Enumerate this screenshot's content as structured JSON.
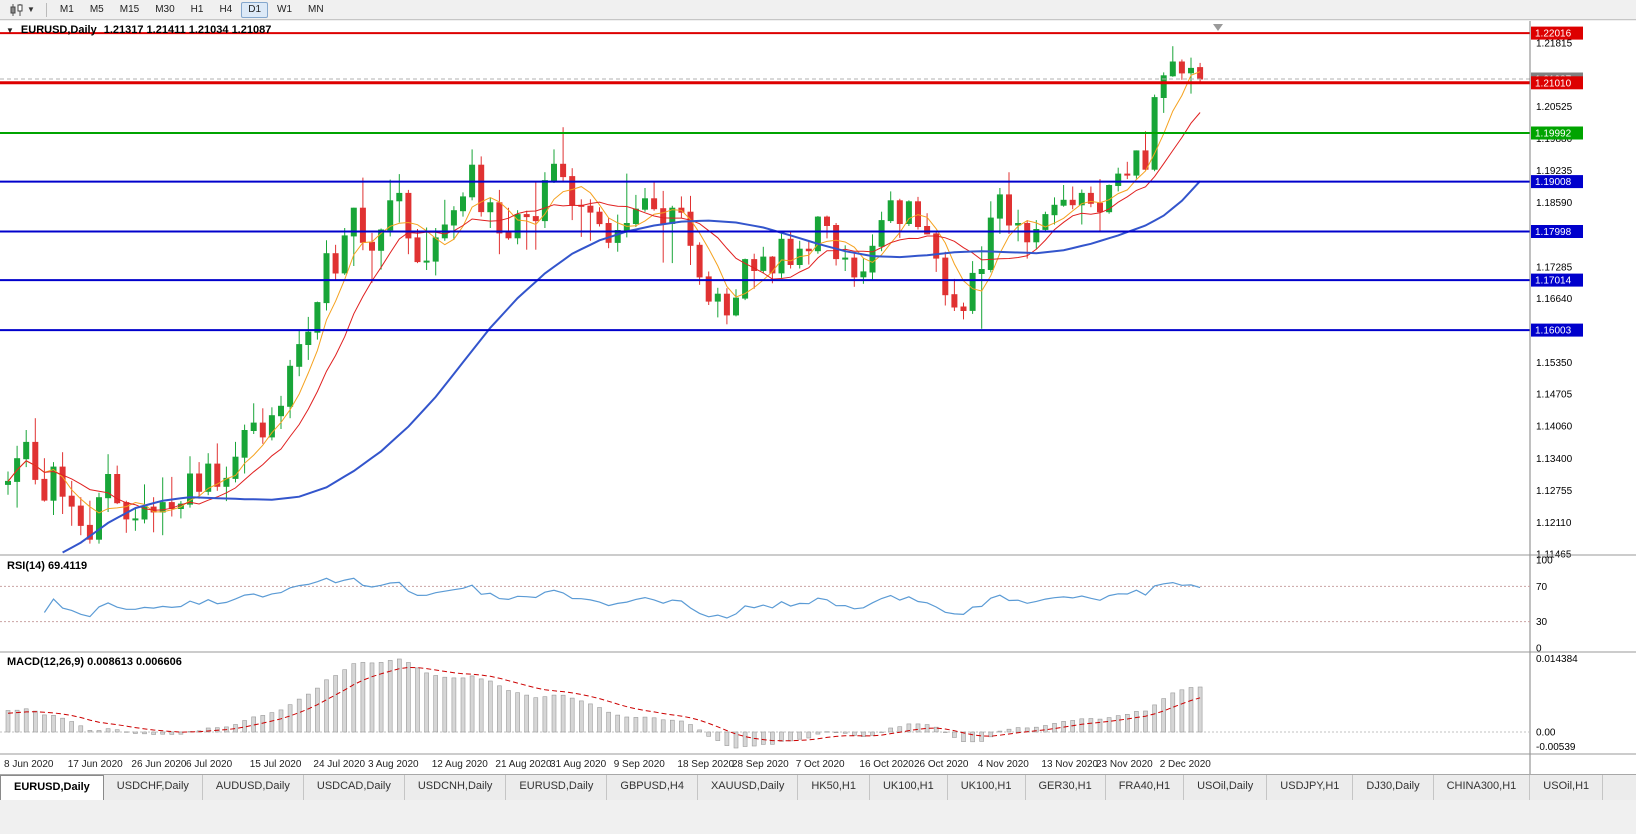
{
  "toolbar": {
    "timeframes": [
      "M1",
      "M5",
      "M15",
      "M30",
      "H1",
      "H4",
      "D1",
      "W1",
      "MN"
    ],
    "active_timeframe": "D1"
  },
  "header": {
    "symbol": "EURUSD,Daily",
    "ohlc": "1.21317 1.21411 1.21034 1.21087"
  },
  "chart_data": {
    "type": "candlestick",
    "title": "EURUSD,Daily",
    "current_quote": {
      "open": 1.21317,
      "high": 1.21411,
      "low": 1.21034,
      "close": 1.21087
    },
    "y_axis": {
      "price_top": 1.2224,
      "price_bottom": 1.1147,
      "ticks": [
        "1.21815",
        "1.20525",
        "1.19880",
        "1.19235",
        "1.18590",
        "1.17285",
        "1.16640",
        "1.15350",
        "1.14705",
        "1.14060",
        "1.13400",
        "1.12755",
        "1.12110",
        "1.11465"
      ]
    },
    "x_ticks": [
      {
        "label": "8 Jun 2020",
        "bar": 0
      },
      {
        "label": "17 Jun 2020",
        "bar": 7
      },
      {
        "label": "26 Jun 2020",
        "bar": 14
      },
      {
        "label": "6 Jul 2020",
        "bar": 20
      },
      {
        "label": "15 Jul 2020",
        "bar": 27
      },
      {
        "label": "24 Jul 2020",
        "bar": 34
      },
      {
        "label": "3 Aug 2020",
        "bar": 40
      },
      {
        "label": "12 Aug 2020",
        "bar": 47
      },
      {
        "label": "21 Aug 2020",
        "bar": 54
      },
      {
        "label": "31 Aug 2020",
        "bar": 60
      },
      {
        "label": "9 Sep 2020",
        "bar": 67
      },
      {
        "label": "18 Sep 2020",
        "bar": 74
      },
      {
        "label": "28 Sep 2020",
        "bar": 80
      },
      {
        "label": "7 Oct 2020",
        "bar": 87
      },
      {
        "label": "16 Oct 2020",
        "bar": 94
      },
      {
        "label": "26 Oct 2020",
        "bar": 100
      },
      {
        "label": "4 Nov 2020",
        "bar": 107
      },
      {
        "label": "13 Nov 2020",
        "bar": 114
      },
      {
        "label": "23 Nov 2020",
        "bar": 120
      },
      {
        "label": "2 Dec 2020",
        "bar": 127
      }
    ],
    "colors": {
      "up": "#18a538",
      "down": "#e03232",
      "background": "#ffffff"
    },
    "hlines": [
      {
        "price": 1.22016,
        "label": "1.22016",
        "color": "#dd0000",
        "width": 2
      },
      {
        "price": 1.2101,
        "label": "1.21010",
        "color": "#dd0000",
        "width": 3
      },
      {
        "price": 1.19992,
        "label": "1.19992",
        "color": "#00a400",
        "width": 2
      },
      {
        "price": 1.19008,
        "label": "1.19008",
        "color": "#0000cc",
        "width": 2
      },
      {
        "price": 1.17998,
        "label": "1.17998",
        "color": "#0000cc",
        "width": 2
      },
      {
        "price": 1.17014,
        "label": "1.17014",
        "color": "#0000cc",
        "width": 2
      },
      {
        "price": 1.16003,
        "label": "1.16003",
        "color": "#0000cc",
        "width": 2
      }
    ],
    "current_price": {
      "value": "1.21087",
      "price": 1.21087,
      "badge_color": "#808080"
    },
    "moving_averages": [
      {
        "name": "fast",
        "type": "sma",
        "period": 5,
        "color": "#f5a21f",
        "width": 1
      },
      {
        "name": "medium",
        "type": "sma",
        "period": 10,
        "color": "#e02020",
        "width": 1
      },
      {
        "name": "slow",
        "color": "#3355cc",
        "width": 2,
        "points": [
          [
            6,
            1.115
          ],
          [
            8,
            1.117
          ],
          [
            11,
            1.121
          ],
          [
            14,
            1.124
          ],
          [
            17,
            1.1255
          ],
          [
            20,
            1.1262
          ],
          [
            23,
            1.126
          ],
          [
            26,
            1.1258
          ],
          [
            29,
            1.1257
          ],
          [
            32,
            1.1263
          ],
          [
            35,
            1.1282
          ],
          [
            38,
            1.1315
          ],
          [
            41,
            1.1355
          ],
          [
            44,
            1.1405
          ],
          [
            47,
            1.1465
          ],
          [
            50,
            1.1535
          ],
          [
            53,
            1.1605
          ],
          [
            56,
            1.1665
          ],
          [
            59,
            1.1715
          ],
          [
            62,
            1.1755
          ],
          [
            65,
            1.1782
          ],
          [
            68,
            1.18
          ],
          [
            71,
            1.1812
          ],
          [
            74,
            1.182
          ],
          [
            77,
            1.1822
          ],
          [
            80,
            1.1818
          ],
          [
            83,
            1.1808
          ],
          [
            86,
            1.1792
          ],
          [
            89,
            1.1775
          ],
          [
            92,
            1.176
          ],
          [
            95,
            1.175
          ],
          [
            98,
            1.1748
          ],
          [
            101,
            1.1752
          ],
          [
            104,
            1.1758
          ],
          [
            107,
            1.176
          ],
          [
            110,
            1.1758
          ],
          [
            113,
            1.1756
          ],
          [
            116,
            1.1762
          ],
          [
            119,
            1.1775
          ],
          [
            122,
            1.1792
          ],
          [
            125,
            1.1812
          ],
          [
            127,
            1.1832
          ],
          [
            129,
            1.1862
          ],
          [
            131,
            1.1902
          ]
        ]
      }
    ],
    "indicators": {
      "rsi": {
        "label": "RSI(14) 69.4119",
        "period": 14,
        "value": 69.4119,
        "levels": [
          100,
          70,
          30,
          0
        ],
        "line_color": "#5b9bd5"
      },
      "macd": {
        "label": "MACD(12,26,9) 0.008613 0.006606",
        "fast": 12,
        "slow": 26,
        "signal": 9,
        "macd_value": 0.008613,
        "signal_value": 0.006606,
        "axis_labels": [
          "0.014384",
          "0.00",
          "-0.00539"
        ],
        "histogram_color": "#d6d6d6",
        "signal_color": "#cc0000"
      }
    },
    "candles": [
      [
        1.1288,
        1.1314,
        1.1267,
        1.1294
      ],
      [
        1.1294,
        1.1366,
        1.1241,
        1.134
      ],
      [
        1.134,
        1.1398,
        1.1323,
        1.1373
      ],
      [
        1.1373,
        1.1422,
        1.1288,
        1.1298
      ],
      [
        1.1298,
        1.1341,
        1.1253,
        1.1256
      ],
      [
        1.1256,
        1.1333,
        1.1226,
        1.1323
      ],
      [
        1.1323,
        1.1353,
        1.1228,
        1.1264
      ],
      [
        1.1264,
        1.1295,
        1.1204,
        1.1244
      ],
      [
        1.1244,
        1.1262,
        1.1185,
        1.1205
      ],
      [
        1.1205,
        1.1255,
        1.1168,
        1.1177
      ],
      [
        1.1177,
        1.1271,
        1.1168,
        1.1261
      ],
      [
        1.1261,
        1.1349,
        1.1232,
        1.1308
      ],
      [
        1.1308,
        1.1326,
        1.1248,
        1.1251
      ],
      [
        1.1251,
        1.1255,
        1.119,
        1.1218
      ],
      [
        1.1218,
        1.1239,
        1.1194,
        1.1218
      ],
      [
        1.1218,
        1.1288,
        1.1209,
        1.1242
      ],
      [
        1.1242,
        1.1262,
        1.1191,
        1.1232
      ],
      [
        1.1232,
        1.1302,
        1.1185,
        1.1251
      ],
      [
        1.1251,
        1.1303,
        1.1223,
        1.1239
      ],
      [
        1.1239,
        1.1254,
        1.1219,
        1.1248
      ],
      [
        1.1248,
        1.1345,
        1.1241,
        1.1309
      ],
      [
        1.1309,
        1.1333,
        1.1259,
        1.1274
      ],
      [
        1.1274,
        1.1351,
        1.1266,
        1.1329
      ],
      [
        1.1329,
        1.1371,
        1.1275,
        1.1284
      ],
      [
        1.1284,
        1.1324,
        1.1254,
        1.13
      ],
      [
        1.13,
        1.1374,
        1.1292,
        1.1343
      ],
      [
        1.1343,
        1.1409,
        1.131,
        1.1397
      ],
      [
        1.1397,
        1.1452,
        1.139,
        1.1412
      ],
      [
        1.1412,
        1.1442,
        1.137,
        1.1384
      ],
      [
        1.1384,
        1.1444,
        1.1377,
        1.1427
      ],
      [
        1.1427,
        1.1467,
        1.14,
        1.1446
      ],
      [
        1.1446,
        1.154,
        1.1422,
        1.1527
      ],
      [
        1.1527,
        1.1601,
        1.1507,
        1.1571
      ],
      [
        1.1571,
        1.1627,
        1.154,
        1.1596
      ],
      [
        1.1596,
        1.1658,
        1.1581,
        1.1656
      ],
      [
        1.1656,
        1.1782,
        1.164,
        1.1755
      ],
      [
        1.1755,
        1.1773,
        1.17,
        1.1716
      ],
      [
        1.1716,
        1.1807,
        1.1712,
        1.1791
      ],
      [
        1.1791,
        1.1848,
        1.173,
        1.1847
      ],
      [
        1.1847,
        1.1909,
        1.1762,
        1.1778
      ],
      [
        1.1778,
        1.1797,
        1.1696,
        1.1762
      ],
      [
        1.1762,
        1.1806,
        1.1723,
        1.1803
      ],
      [
        1.1803,
        1.1905,
        1.179,
        1.1862
      ],
      [
        1.1862,
        1.1916,
        1.1818,
        1.1877
      ],
      [
        1.1877,
        1.1884,
        1.1754,
        1.1787
      ],
      [
        1.1787,
        1.1805,
        1.1736,
        1.1739
      ],
      [
        1.1739,
        1.1808,
        1.1722,
        1.174
      ],
      [
        1.174,
        1.1807,
        1.1711,
        1.1787
      ],
      [
        1.1787,
        1.1864,
        1.1781,
        1.1813
      ],
      [
        1.1813,
        1.1851,
        1.1783,
        1.1842
      ],
      [
        1.1842,
        1.1879,
        1.183,
        1.187
      ],
      [
        1.187,
        1.1966,
        1.1863,
        1.1934
      ],
      [
        1.1934,
        1.1952,
        1.183,
        1.184
      ],
      [
        1.184,
        1.1868,
        1.1807,
        1.1858
      ],
      [
        1.1858,
        1.1884,
        1.1754,
        1.1797
      ],
      [
        1.1797,
        1.1848,
        1.1783,
        1.1787
      ],
      [
        1.1787,
        1.1843,
        1.1774,
        1.1834
      ],
      [
        1.1834,
        1.1842,
        1.1763,
        1.183
      ],
      [
        1.183,
        1.19,
        1.1763,
        1.1822
      ],
      [
        1.1822,
        1.192,
        1.1807,
        1.1903
      ],
      [
        1.1903,
        1.1966,
        1.1898,
        1.1936
      ],
      [
        1.1936,
        1.2011,
        1.1902,
        1.1911
      ],
      [
        1.1911,
        1.1928,
        1.1823,
        1.1853
      ],
      [
        1.1853,
        1.1865,
        1.1789,
        1.1851
      ],
      [
        1.1851,
        1.1865,
        1.1781,
        1.1839
      ],
      [
        1.1839,
        1.1849,
        1.181,
        1.1816
      ],
      [
        1.1816,
        1.1827,
        1.1766,
        1.1778
      ],
      [
        1.1778,
        1.1834,
        1.1759,
        1.1802
      ],
      [
        1.1802,
        1.1917,
        1.1788,
        1.1816
      ],
      [
        1.1816,
        1.1874,
        1.1809,
        1.1845
      ],
      [
        1.1845,
        1.1888,
        1.184,
        1.1866
      ],
      [
        1.1866,
        1.19,
        1.1842,
        1.1846
      ],
      [
        1.1846,
        1.1882,
        1.1737,
        1.1816
      ],
      [
        1.1816,
        1.1852,
        1.1736,
        1.1847
      ],
      [
        1.1847,
        1.1871,
        1.1827,
        1.1839
      ],
      [
        1.1839,
        1.1872,
        1.1732,
        1.1772
      ],
      [
        1.1772,
        1.1778,
        1.1692,
        1.1708
      ],
      [
        1.1708,
        1.1719,
        1.1651,
        1.1659
      ],
      [
        1.1659,
        1.1686,
        1.1626,
        1.1673
      ],
      [
        1.1673,
        1.1685,
        1.1612,
        1.1631
      ],
      [
        1.1631,
        1.1683,
        1.1628,
        1.1665
      ],
      [
        1.1665,
        1.1745,
        1.1661,
        1.1743
      ],
      [
        1.1743,
        1.1755,
        1.1684,
        1.1721
      ],
      [
        1.1721,
        1.1769,
        1.1715,
        1.1748
      ],
      [
        1.1748,
        1.175,
        1.1695,
        1.1716
      ],
      [
        1.1716,
        1.1797,
        1.1706,
        1.1784
      ],
      [
        1.1784,
        1.1798,
        1.1725,
        1.1733
      ],
      [
        1.1733,
        1.1781,
        1.1725,
        1.1764
      ],
      [
        1.1764,
        1.1782,
        1.1733,
        1.1761
      ],
      [
        1.1761,
        1.1831,
        1.1755,
        1.1829
      ],
      [
        1.1829,
        1.1832,
        1.1786,
        1.1812
      ],
      [
        1.1812,
        1.1817,
        1.1731,
        1.1745
      ],
      [
        1.1745,
        1.1772,
        1.172,
        1.1746
      ],
      [
        1.1746,
        1.1758,
        1.1688,
        1.1708
      ],
      [
        1.1708,
        1.1746,
        1.1694,
        1.1718
      ],
      [
        1.1718,
        1.1794,
        1.1703,
        1.177
      ],
      [
        1.177,
        1.184,
        1.176,
        1.1822
      ],
      [
        1.1822,
        1.1881,
        1.1817,
        1.1862
      ],
      [
        1.1862,
        1.1866,
        1.1787,
        1.1816
      ],
      [
        1.1816,
        1.1863,
        1.1811,
        1.186
      ],
      [
        1.186,
        1.187,
        1.1804,
        1.181
      ],
      [
        1.181,
        1.1837,
        1.1794,
        1.1795
      ],
      [
        1.1795,
        1.18,
        1.1718,
        1.1746
      ],
      [
        1.1746,
        1.1759,
        1.165,
        1.1672
      ],
      [
        1.1672,
        1.1704,
        1.1639,
        1.1647
      ],
      [
        1.1647,
        1.1656,
        1.1622,
        1.164
      ],
      [
        1.164,
        1.174,
        1.1633,
        1.1715
      ],
      [
        1.1715,
        1.177,
        1.1603,
        1.1723
      ],
      [
        1.1723,
        1.1861,
        1.1717,
        1.1827
      ],
      [
        1.1827,
        1.1888,
        1.1795,
        1.1874
      ],
      [
        1.1874,
        1.192,
        1.1795,
        1.1813
      ],
      [
        1.1813,
        1.1844,
        1.178,
        1.1816
      ],
      [
        1.1816,
        1.1823,
        1.1745,
        1.1779
      ],
      [
        1.1779,
        1.1823,
        1.1765,
        1.1804
      ],
      [
        1.1804,
        1.184,
        1.1799,
        1.1834
      ],
      [
        1.1834,
        1.1869,
        1.1814,
        1.1853
      ],
      [
        1.1853,
        1.1894,
        1.185,
        1.1863
      ],
      [
        1.1863,
        1.1891,
        1.1845,
        1.1854
      ],
      [
        1.1854,
        1.1885,
        1.1814,
        1.1877
      ],
      [
        1.1877,
        1.1891,
        1.1849,
        1.1857
      ],
      [
        1.1857,
        1.1906,
        1.18,
        1.184
      ],
      [
        1.184,
        1.1895,
        1.1836,
        1.1893
      ],
      [
        1.1893,
        1.1929,
        1.1881,
        1.1916
      ],
      [
        1.1916,
        1.1941,
        1.1906,
        1.1914
      ],
      [
        1.1914,
        1.1964,
        1.1907,
        1.1963
      ],
      [
        1.1963,
        1.2003,
        1.1924,
        1.1926
      ],
      [
        1.1926,
        1.2077,
        1.1922,
        1.2071
      ],
      [
        1.2071,
        1.2122,
        1.204,
        1.2115
      ],
      [
        1.2115,
        1.2175,
        1.2113,
        1.2143
      ],
      [
        1.2143,
        1.2148,
        1.2107,
        1.2121
      ],
      [
        1.2121,
        1.2152,
        1.2079,
        1.213
      ],
      [
        1.21317,
        1.21411,
        1.21034,
        1.21087
      ]
    ]
  },
  "tabs": {
    "active_index": 0,
    "items": [
      "EURUSD,Daily",
      "USDCHF,Daily",
      "AUDUSD,Daily",
      "USDCAD,Daily",
      "USDCNH,Daily",
      "EURUSD,Daily",
      "GBPUSD,H4",
      "XAUUSD,Daily",
      "HK50,H1",
      "UK100,H1",
      "UK100,H1",
      "GER30,H1",
      "FRA40,H1",
      "USOil,Daily",
      "USDJPY,H1",
      "DJ30,Daily",
      "CHINA300,H1",
      "USOil,H1"
    ]
  }
}
